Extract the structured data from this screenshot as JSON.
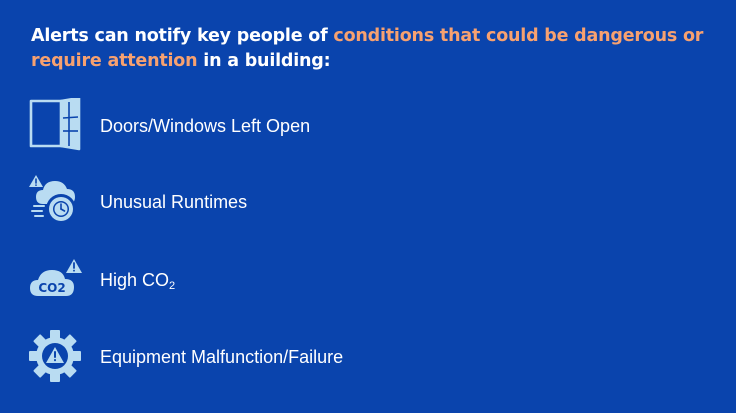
{
  "heading": {
    "part1": "Alerts can notify key people of ",
    "highlight": "conditions that could be dangerous or require attention",
    "part2": " in a building:"
  },
  "items": [
    {
      "label": "Doors/Windows Left Open",
      "icon": "open-door-icon"
    },
    {
      "label": "Unusual Runtimes",
      "icon": "cloud-timer-warning-icon"
    },
    {
      "label_main": "High CO",
      "label_sub": "2",
      "icon": "co2-cloud-warning-icon",
      "icon_text": "CO2"
    },
    {
      "label": "Equipment Malfunction/Failure",
      "icon": "gear-warning-icon"
    }
  ],
  "colors": {
    "background": "#0a44ad",
    "accent": "#f7a170",
    "icon": "#b9dcf2",
    "text": "#ffffff"
  }
}
